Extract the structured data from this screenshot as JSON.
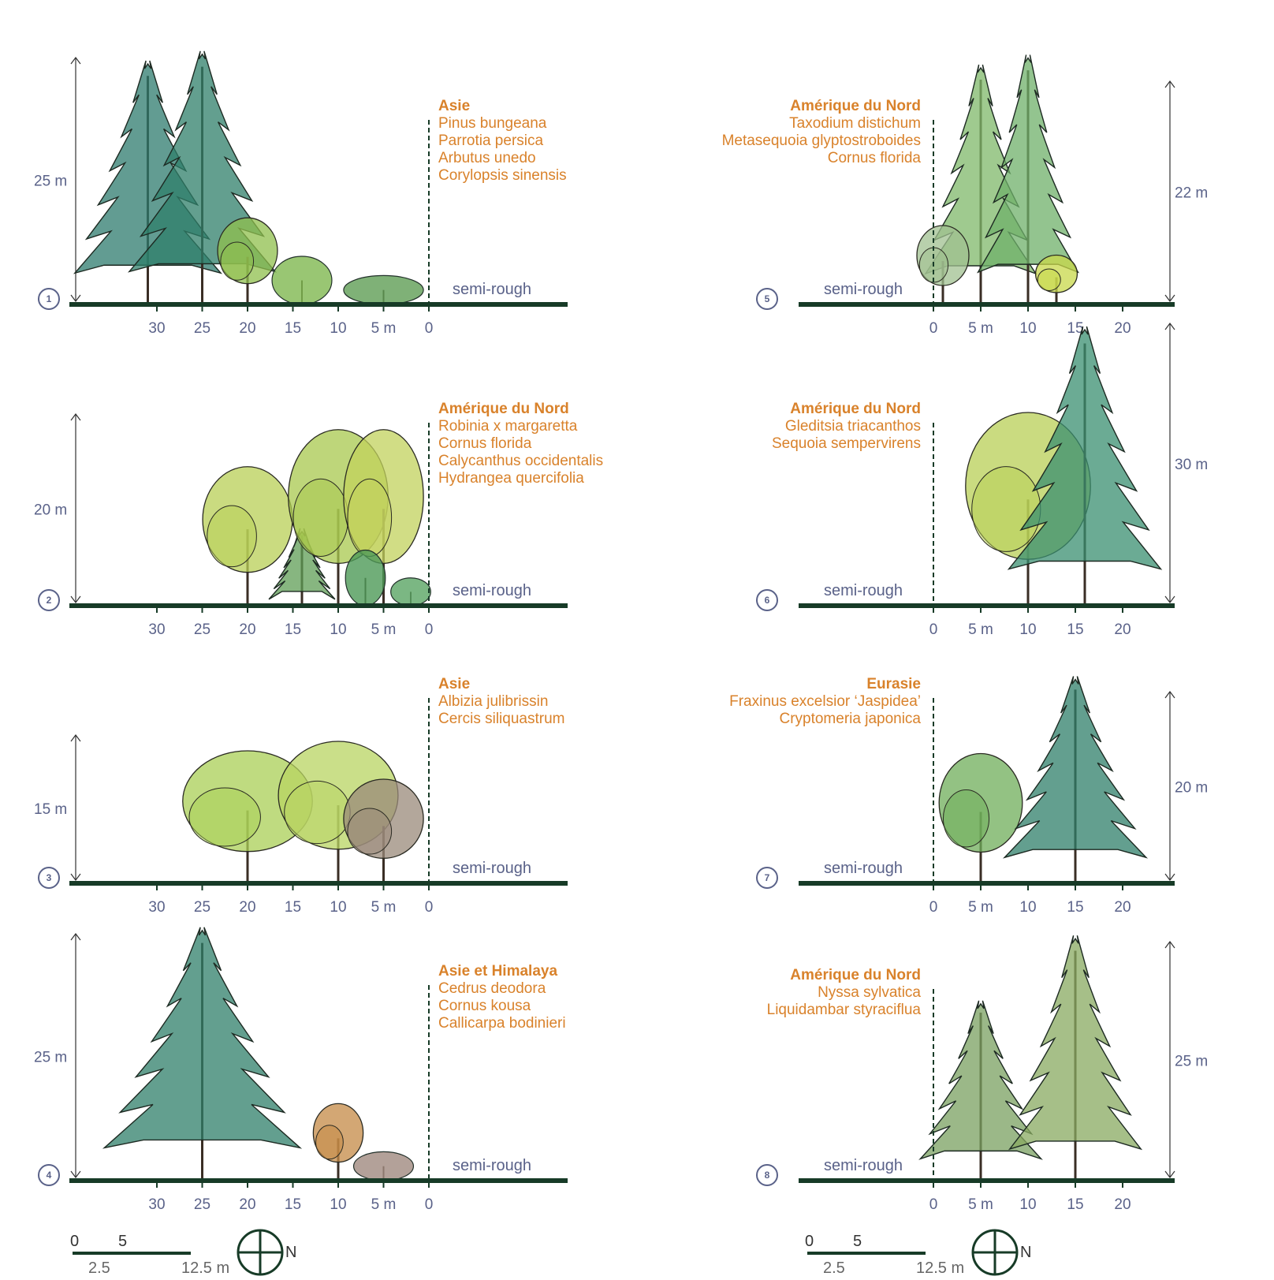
{
  "colors": {
    "ground": "#173b27",
    "accent": "#d9822b",
    "label": "#5a6289"
  },
  "panels": [
    {
      "number": "1",
      "side": "left",
      "height_label": "25 m",
      "height_m": 25,
      "region": "Asie",
      "species": [
        "Pinus bungeana",
        "Parrotia persica",
        "Arbutus unedo",
        "Corylopsis sinensis"
      ],
      "ground_label": "semi-rough",
      "ticks": [
        "30",
        "25",
        "20",
        "15",
        "10",
        "5 m",
        "0"
      ],
      "trees": [
        {
          "type": "conifer",
          "pos": 31,
          "h": 25,
          "w": 14,
          "color": "#2e7b6e"
        },
        {
          "type": "conifer",
          "pos": 25,
          "h": 26,
          "w": 14,
          "color": "#2f7f6a"
        },
        {
          "type": "broadleaf",
          "pos": 20,
          "h": 9,
          "w": 6,
          "color": "#8fbf4c"
        },
        {
          "type": "shrub",
          "pos": 14,
          "h": 5,
          "w": 6,
          "color": "#7fb850"
        },
        {
          "type": "shrub",
          "pos": 5,
          "h": 3,
          "w": 8,
          "color": "#5f9e55"
        }
      ]
    },
    {
      "number": "2",
      "side": "left",
      "height_label": "20 m",
      "height_m": 20,
      "region": "Amérique du Nord",
      "species": [
        "Robinia x margaretta",
        "Cornus florida",
        "Calycanthus occidentalis",
        "Hydrangea quercifolia"
      ],
      "ground_label": "semi-rough",
      "ticks": [
        "30",
        "25",
        "20",
        "15",
        "10",
        "5 m",
        "0"
      ],
      "trees": [
        {
          "type": "broadleaf",
          "pos": 20,
          "h": 15,
          "w": 9,
          "color": "#b8cf55"
        },
        {
          "type": "conifer",
          "pos": 14,
          "h": 8,
          "w": 6,
          "color": "#5f9e55"
        },
        {
          "type": "broadleaf",
          "pos": 10,
          "h": 19,
          "w": 10,
          "color": "#a8c84e"
        },
        {
          "type": "broadleaf",
          "pos": 5,
          "h": 19,
          "w": 8,
          "color": "#c2d25c"
        },
        {
          "type": "shrub",
          "pos": 7,
          "h": 6,
          "w": 4,
          "color": "#4e9a58"
        },
        {
          "type": "shrub",
          "pos": 2,
          "h": 3,
          "w": 4,
          "color": "#5aa564"
        }
      ]
    },
    {
      "number": "3",
      "side": "left",
      "height_label": "15 m",
      "height_m": 15,
      "region": "Asie",
      "species": [
        "Albizia julibrissin",
        "Cercis siliquastrum"
      ],
      "ground_label": "semi-rough",
      "ticks": [
        "30",
        "25",
        "20",
        "15",
        "10",
        "5 m",
        "0"
      ],
      "trees": [
        {
          "type": "broadleaf",
          "pos": 20,
          "h": 14,
          "w": 13,
          "color": "#a9cf56"
        },
        {
          "type": "broadleaf",
          "pos": 10,
          "h": 15,
          "w": 12,
          "color": "#b8d462"
        },
        {
          "type": "broadleaf",
          "pos": 5,
          "h": 11,
          "w": 8,
          "color": "#9a8a7a"
        }
      ]
    },
    {
      "number": "4",
      "side": "left",
      "height_label": "25 m",
      "height_m": 25,
      "region": "Asie et Himalaya",
      "species": [
        "Cedrus deodora",
        "Cornus kousa",
        "Callicarpa bodinieri"
      ],
      "ground_label": "semi-rough",
      "ticks": [
        "30",
        "25",
        "20",
        "15",
        "10",
        "5 m",
        "0"
      ],
      "trees": [
        {
          "type": "conifer",
          "pos": 25,
          "h": 26,
          "w": 19,
          "color": "#2f7f6a"
        },
        {
          "type": "broadleaf",
          "pos": 10,
          "h": 8,
          "w": 5,
          "color": "#c48a45"
        },
        {
          "type": "shrub",
          "pos": 5,
          "h": 3,
          "w": 6,
          "color": "#a08a80"
        }
      ]
    },
    {
      "number": "5",
      "side": "right",
      "height_label": "22 m",
      "height_m": 22,
      "region": "Amérique du Nord",
      "species": [
        "Taxodium distichum",
        "Metasequoia glyptostroboides",
        "Cornus florida"
      ],
      "ground_label": "semi-rough",
      "ticks": [
        "0",
        "5 m",
        "10",
        "15",
        "20"
      ],
      "trees": [
        {
          "type": "conifer",
          "pos": 5,
          "h": 24,
          "w": 10,
          "color": "#7fb86a"
        },
        {
          "type": "conifer",
          "pos": 10,
          "h": 25,
          "w": 9,
          "color": "#6fb06a"
        },
        {
          "type": "broadleaf",
          "pos": 1,
          "h": 8,
          "w": 5,
          "color": "#a0c090"
        },
        {
          "type": "broadleaf",
          "pos": 13,
          "h": 5,
          "w": 4,
          "color": "#c8d84a"
        }
      ]
    },
    {
      "number": "6",
      "side": "right",
      "height_label": "30 m",
      "height_m": 30,
      "region": "Amérique du Nord",
      "species": [
        "Gleditsia triacanthos",
        "Sequoia sempervirens"
      ],
      "ground_label": "semi-rough",
      "ticks": [
        "0",
        "5 m",
        "10",
        "15",
        "20"
      ],
      "trees": [
        {
          "type": "broadleaf",
          "pos": 10,
          "h": 21,
          "w": 12,
          "color": "#b8cf55"
        },
        {
          "type": "conifer",
          "pos": 16,
          "h": 30,
          "w": 14,
          "color": "#3a8f70"
        }
      ]
    },
    {
      "number": "7",
      "side": "right",
      "height_label": "20 m",
      "height_m": 20,
      "region": "Eurasie",
      "species": [
        "Fraxinus excelsior ‘Jaspidea’",
        "Cryptomeria japonica"
      ],
      "ground_label": "semi-rough",
      "ticks": [
        "0",
        "5 m",
        "10",
        "15",
        "20"
      ],
      "trees": [
        {
          "type": "broadleaf",
          "pos": 5,
          "h": 14,
          "w": 8,
          "color": "#6fae5a"
        },
        {
          "type": "conifer",
          "pos": 15,
          "h": 22,
          "w": 13,
          "color": "#2f7f6a"
        }
      ]
    },
    {
      "number": "8",
      "side": "right",
      "height_label": "25 m",
      "height_m": 25,
      "region": "Amérique du Nord",
      "species": [
        "Nyssa sylvatica",
        "Liquidambar styraciflua"
      ],
      "ground_label": "semi-rough",
      "ticks": [
        "0",
        "5 m",
        "10",
        "15",
        "20"
      ],
      "trees": [
        {
          "type": "conifer",
          "pos": 5,
          "h": 19,
          "w": 11,
          "color": "#7aa060"
        },
        {
          "type": "conifer",
          "pos": 15,
          "h": 26,
          "w": 12,
          "color": "#88aa60"
        }
      ]
    }
  ],
  "scale_bars": [
    {
      "labels_top": [
        "0",
        "5"
      ],
      "labels_bottom": [
        "2.5",
        "12.5 m"
      ],
      "compass": "N"
    },
    {
      "labels_top": [
        "0",
        "5"
      ],
      "labels_bottom": [
        "2.5",
        "12.5 m"
      ],
      "compass": "N"
    }
  ]
}
